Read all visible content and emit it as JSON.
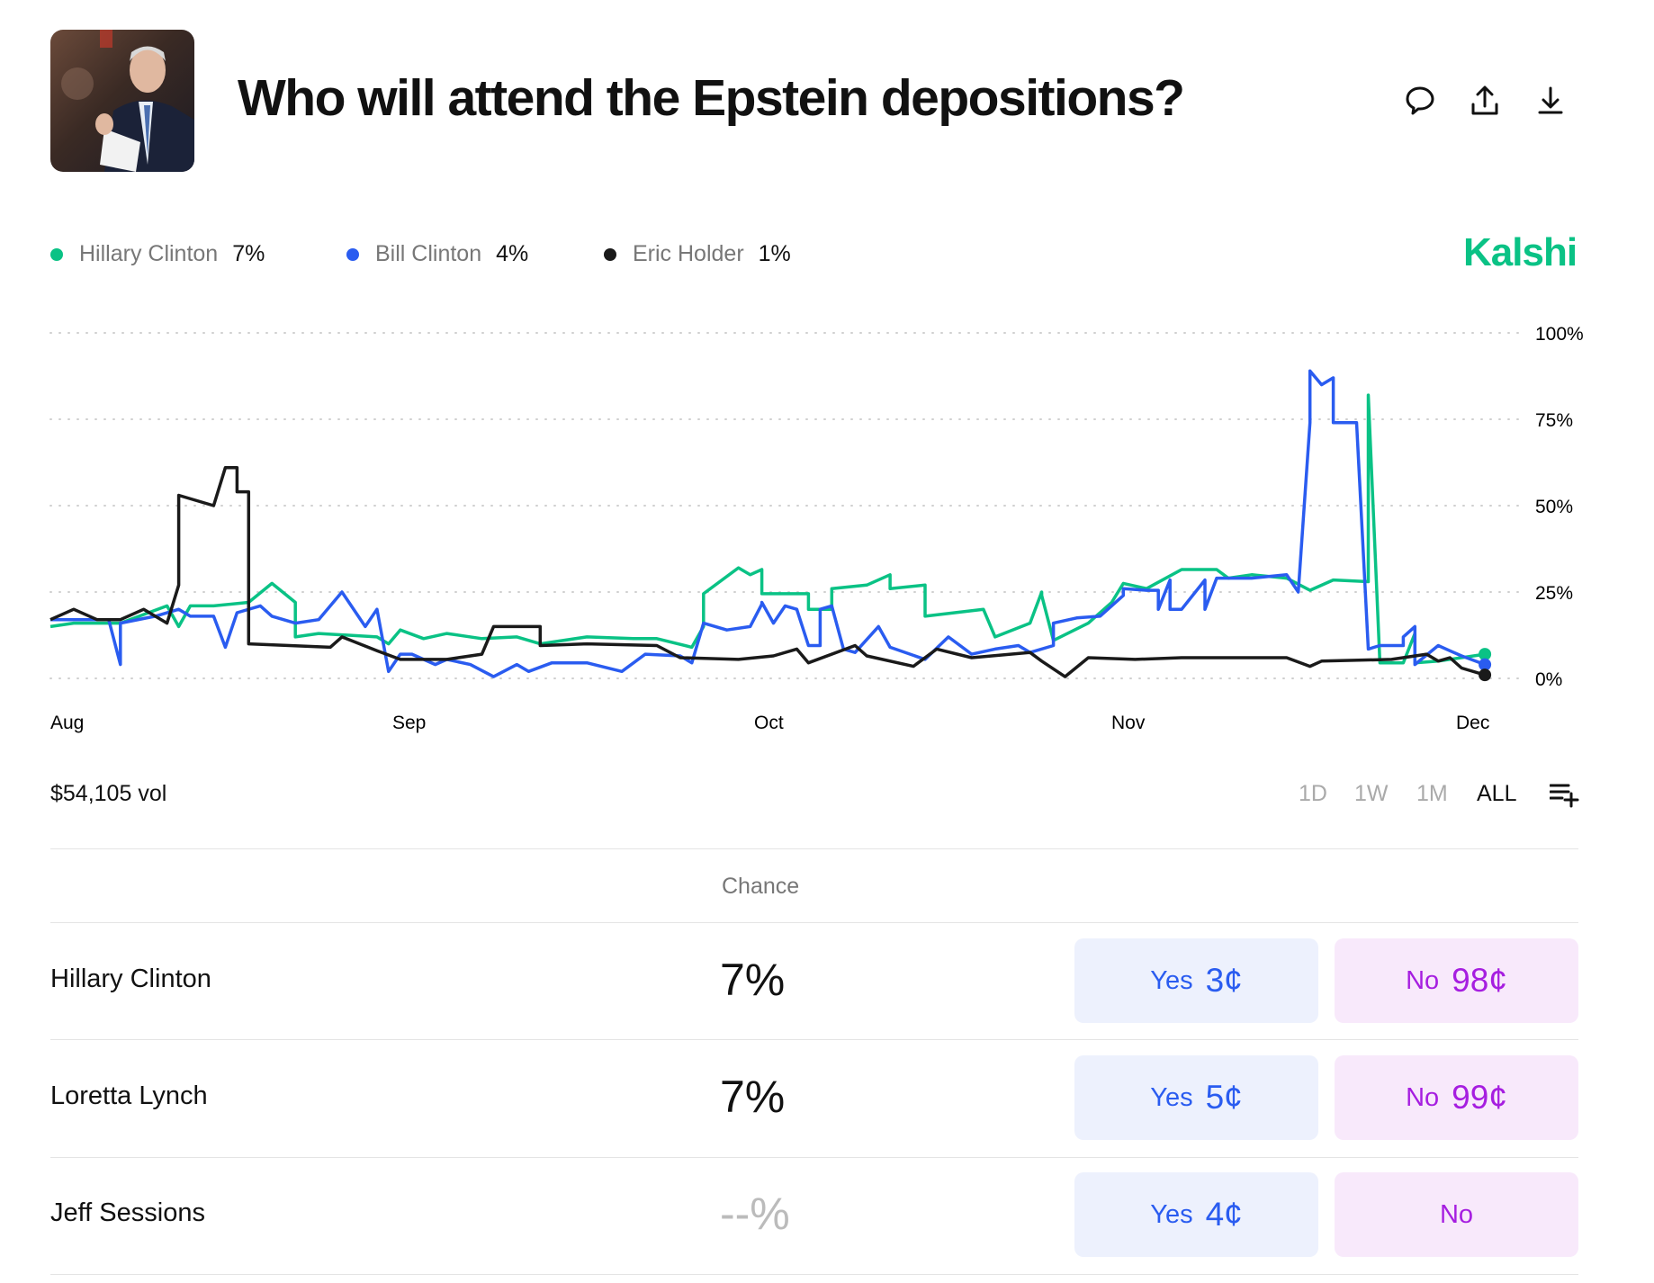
{
  "header": {
    "title": "Who will attend the Epstein depositions?",
    "image_alt": "photo"
  },
  "icons": [
    "comment-icon",
    "share-icon",
    "download-icon"
  ],
  "legend": [
    {
      "name": "Hillary Clinton",
      "pct": "7%",
      "color": "#0ac285"
    },
    {
      "name": "Bill Clinton",
      "pct": "4%",
      "color": "#2a5cf0"
    },
    {
      "name": "Eric Holder",
      "pct": "1%",
      "color": "#1a1a1a"
    }
  ],
  "brand": "Kalshi",
  "chart_data": {
    "type": "line",
    "y_ticks": [
      "100%",
      "75%",
      "50%",
      "25%",
      "0%"
    ],
    "ylim": [
      0,
      100
    ],
    "x_ticks": [
      "Aug",
      "Sep",
      "Oct",
      "Nov",
      "Dec"
    ],
    "grid": "dotted horizontal",
    "series": [
      {
        "name": "Hillary Clinton",
        "color": "#0ac285",
        "points": [
          [
            "Aug 1",
            15
          ],
          [
            "Aug 3",
            16
          ],
          [
            "Aug 5",
            16
          ],
          [
            "Aug 7",
            16
          ],
          [
            "Aug 11",
            21
          ],
          [
            "Aug 12",
            15
          ],
          [
            "Aug 13",
            21
          ],
          [
            "Aug 15",
            21
          ],
          [
            "Aug 18",
            22
          ],
          [
            "Aug 20",
            27.5
          ],
          [
            "Aug 22",
            22
          ],
          [
            "Aug 22",
            12
          ],
          [
            "Aug 24",
            13
          ],
          [
            "Aug 29",
            12
          ],
          [
            "Aug 30",
            10
          ],
          [
            "Aug 31",
            14
          ],
          [
            "Sep 2",
            11.5
          ],
          [
            "Sep 4",
            13
          ],
          [
            "Sep 7",
            11.5
          ],
          [
            "Sep 10",
            12
          ],
          [
            "Sep 12",
            10
          ],
          [
            "Sep 16",
            12
          ],
          [
            "Sep 20",
            11.5
          ],
          [
            "Sep 22",
            11.5
          ],
          [
            "Sep 25",
            9
          ],
          [
            "Sep 26",
            15
          ],
          [
            "Sep 26",
            24.5
          ],
          [
            "Sep 29",
            32
          ],
          [
            "Sep 30",
            30
          ],
          [
            "Oct 1",
            31.5
          ],
          [
            "Oct 1",
            24.5
          ],
          [
            "Oct 5",
            24.5
          ],
          [
            "Oct 5",
            20
          ],
          [
            "Oct 7",
            20
          ],
          [
            "Oct 7",
            26
          ],
          [
            "Oct 10",
            27
          ],
          [
            "Oct 12",
            30
          ],
          [
            "Oct 12",
            26
          ],
          [
            "Oct 15",
            27
          ],
          [
            "Oct 15",
            18
          ],
          [
            "Oct 20",
            20
          ],
          [
            "Oct 21",
            12
          ],
          [
            "Oct 24",
            16
          ],
          [
            "Oct 25",
            25
          ],
          [
            "Oct 25",
            24
          ],
          [
            "Oct 26",
            11
          ],
          [
            "Oct 29",
            16
          ],
          [
            "Oct 31",
            22
          ],
          [
            "Nov 1",
            27.5
          ],
          [
            "Nov 3",
            26
          ],
          [
            "Nov 6",
            31.5
          ],
          [
            "Nov 9",
            31.5
          ],
          [
            "Nov 10",
            29
          ],
          [
            "Nov 12",
            30
          ],
          [
            "Nov 15",
            29
          ],
          [
            "Nov 17",
            25.5
          ],
          [
            "Nov 19",
            28.5
          ],
          [
            "Nov 22",
            28
          ],
          [
            "Nov 22",
            82
          ],
          [
            "Nov 23",
            4.5
          ],
          [
            "Nov 25",
            4.5
          ],
          [
            "Nov 26",
            13
          ],
          [
            "Nov 26",
            4.5
          ],
          [
            "Nov 28",
            5
          ],
          [
            "Dec 2",
            7
          ]
        ]
      },
      {
        "name": "Bill Clinton",
        "color": "#2a5cf0",
        "points": [
          [
            "Aug 1",
            17
          ],
          [
            "Aug 5",
            17
          ],
          [
            "Aug 6",
            17
          ],
          [
            "Aug 7",
            4
          ],
          [
            "Aug 7",
            16
          ],
          [
            "Aug 10",
            18
          ],
          [
            "Aug 12",
            20
          ],
          [
            "Aug 13",
            18
          ],
          [
            "Aug 15",
            18
          ],
          [
            "Aug 16",
            9
          ],
          [
            "Aug 17",
            19
          ],
          [
            "Aug 19",
            21
          ],
          [
            "Aug 20",
            18
          ],
          [
            "Aug 22",
            16
          ],
          [
            "Aug 24",
            17
          ],
          [
            "Aug 26",
            25
          ],
          [
            "Aug 28",
            15
          ],
          [
            "Aug 29",
            20
          ],
          [
            "Aug 30",
            2
          ],
          [
            "Aug 31",
            7
          ],
          [
            "Sep 1",
            7
          ],
          [
            "Sep 3",
            4
          ],
          [
            "Sep 4",
            5.5
          ],
          [
            "Sep 6",
            4
          ],
          [
            "Sep 8",
            0.5
          ],
          [
            "Sep 10",
            4
          ],
          [
            "Sep 11",
            2
          ],
          [
            "Sep 13",
            4.5
          ],
          [
            "Sep 16",
            4.5
          ],
          [
            "Sep 19",
            2
          ],
          [
            "Sep 21",
            7
          ],
          [
            "Sep 24",
            6.5
          ],
          [
            "Sep 25",
            4.5
          ],
          [
            "Sep 26",
            16
          ],
          [
            "Sep 28",
            14
          ],
          [
            "Sep 30",
            15
          ],
          [
            "Oct 1",
            21.5
          ],
          [
            "Oct 1",
            22
          ],
          [
            "Oct 2",
            16
          ],
          [
            "Oct 3",
            21
          ],
          [
            "Oct 4",
            20
          ],
          [
            "Oct 5",
            9.5
          ],
          [
            "Oct 6",
            9.5
          ],
          [
            "Oct 6",
            20
          ],
          [
            "Oct 7",
            21
          ],
          [
            "Oct 8",
            8.5
          ],
          [
            "Oct 9",
            7.5
          ],
          [
            "Oct 11",
            15
          ],
          [
            "Oct 12",
            9
          ],
          [
            "Oct 15",
            5.5
          ],
          [
            "Oct 17",
            12
          ],
          [
            "Oct 19",
            7
          ],
          [
            "Oct 21",
            8.5
          ],
          [
            "Oct 23",
            9.5
          ],
          [
            "Oct 24",
            7.5
          ],
          [
            "Oct 26",
            9.5
          ],
          [
            "Oct 26",
            16
          ],
          [
            "Oct 28",
            17.5
          ],
          [
            "Oct 30",
            18
          ],
          [
            "Nov 1",
            24
          ],
          [
            "Nov 1",
            26
          ],
          [
            "Nov 3",
            25.5
          ],
          [
            "Nov 4",
            25.5
          ],
          [
            "Nov 4",
            20
          ],
          [
            "Nov 5",
            28.5
          ],
          [
            "Nov 5",
            20
          ],
          [
            "Nov 6",
            20
          ],
          [
            "Nov 8",
            28.5
          ],
          [
            "Nov 8",
            20
          ],
          [
            "Nov 9",
            29
          ],
          [
            "Nov 12",
            29
          ],
          [
            "Nov 15",
            30
          ],
          [
            "Nov 16",
            25
          ],
          [
            "Nov 17",
            74
          ],
          [
            "Nov 17",
            89
          ],
          [
            "Nov 18",
            85
          ],
          [
            "Nov 19",
            87
          ],
          [
            "Nov 19",
            74
          ],
          [
            "Nov 21",
            74
          ],
          [
            "Nov 22",
            8.5
          ],
          [
            "Nov 23",
            9.5
          ],
          [
            "Nov 25",
            9.5
          ],
          [
            "Nov 25",
            12
          ],
          [
            "Nov 26",
            15
          ],
          [
            "Nov 26",
            4
          ],
          [
            "Nov 28",
            9.5
          ],
          [
            "Nov 29",
            8
          ],
          [
            "Nov 30",
            6.5
          ],
          [
            "Dec 2",
            4
          ]
        ]
      },
      {
        "name": "Eric Holder",
        "color": "#1a1a1a",
        "points": [
          [
            "Aug 1",
            17
          ],
          [
            "Aug 3",
            20
          ],
          [
            "Aug 5",
            17
          ],
          [
            "Aug 7",
            17
          ],
          [
            "Aug 9",
            20
          ],
          [
            "Aug 11",
            16
          ],
          [
            "Aug 12",
            27
          ],
          [
            "Aug 12",
            53
          ],
          [
            "Aug 15",
            50
          ],
          [
            "Aug 16",
            61
          ],
          [
            "Aug 17",
            61
          ],
          [
            "Aug 17",
            54
          ],
          [
            "Aug 18",
            54
          ],
          [
            "Aug 18",
            10
          ],
          [
            "Aug 25",
            9
          ],
          [
            "Aug 26",
            12
          ],
          [
            "Aug 29",
            8
          ],
          [
            "Aug 31",
            5.5
          ],
          [
            "Sep 4",
            5.5
          ],
          [
            "Sep 7",
            7
          ],
          [
            "Sep 8",
            15
          ],
          [
            "Sep 12",
            15
          ],
          [
            "Sep 12",
            9.5
          ],
          [
            "Sep 16",
            10
          ],
          [
            "Sep 22",
            9.5
          ],
          [
            "Sep 24",
            6
          ],
          [
            "Sep 29",
            5.5
          ],
          [
            "Oct 2",
            6.5
          ],
          [
            "Oct 4",
            8.5
          ],
          [
            "Oct 5",
            4.5
          ],
          [
            "Oct 9",
            9.5
          ],
          [
            "Oct 10",
            6.5
          ],
          [
            "Oct 14",
            3.5
          ],
          [
            "Oct 16",
            8.5
          ],
          [
            "Oct 19",
            6
          ],
          [
            "Oct 24",
            7.5
          ],
          [
            "Oct 25",
            5
          ],
          [
            "Oct 27",
            0.5
          ],
          [
            "Oct 29",
            6
          ],
          [
            "Nov 2",
            5.5
          ],
          [
            "Nov 6",
            6
          ],
          [
            "Nov 15",
            6
          ],
          [
            "Nov 17",
            3.5
          ],
          [
            "Nov 18",
            5
          ],
          [
            "Nov 24",
            5.5
          ],
          [
            "Nov 27",
            7
          ],
          [
            "Nov 28",
            5
          ],
          [
            "Nov 29",
            6
          ],
          [
            "Nov 30",
            3
          ],
          [
            "Dec 2",
            1
          ]
        ]
      }
    ]
  },
  "volume": "$54,105 vol",
  "ranges": [
    "1D",
    "1W",
    "1M",
    "ALL"
  ],
  "active_range": "ALL",
  "table": {
    "header": "Chance",
    "rows": [
      {
        "name": "Hillary Clinton",
        "chance": "7%",
        "yes_label": "Yes",
        "yes_price": "3¢",
        "no_label": "No",
        "no_price": "98¢"
      },
      {
        "name": "Loretta Lynch",
        "chance": "7%",
        "yes_label": "Yes",
        "yes_price": "5¢",
        "no_label": "No",
        "no_price": "99¢"
      },
      {
        "name": "Jeff Sessions",
        "chance": "--%",
        "yes_label": "Yes",
        "yes_price": "4¢",
        "no_label": "No",
        "no_price": ""
      }
    ]
  }
}
